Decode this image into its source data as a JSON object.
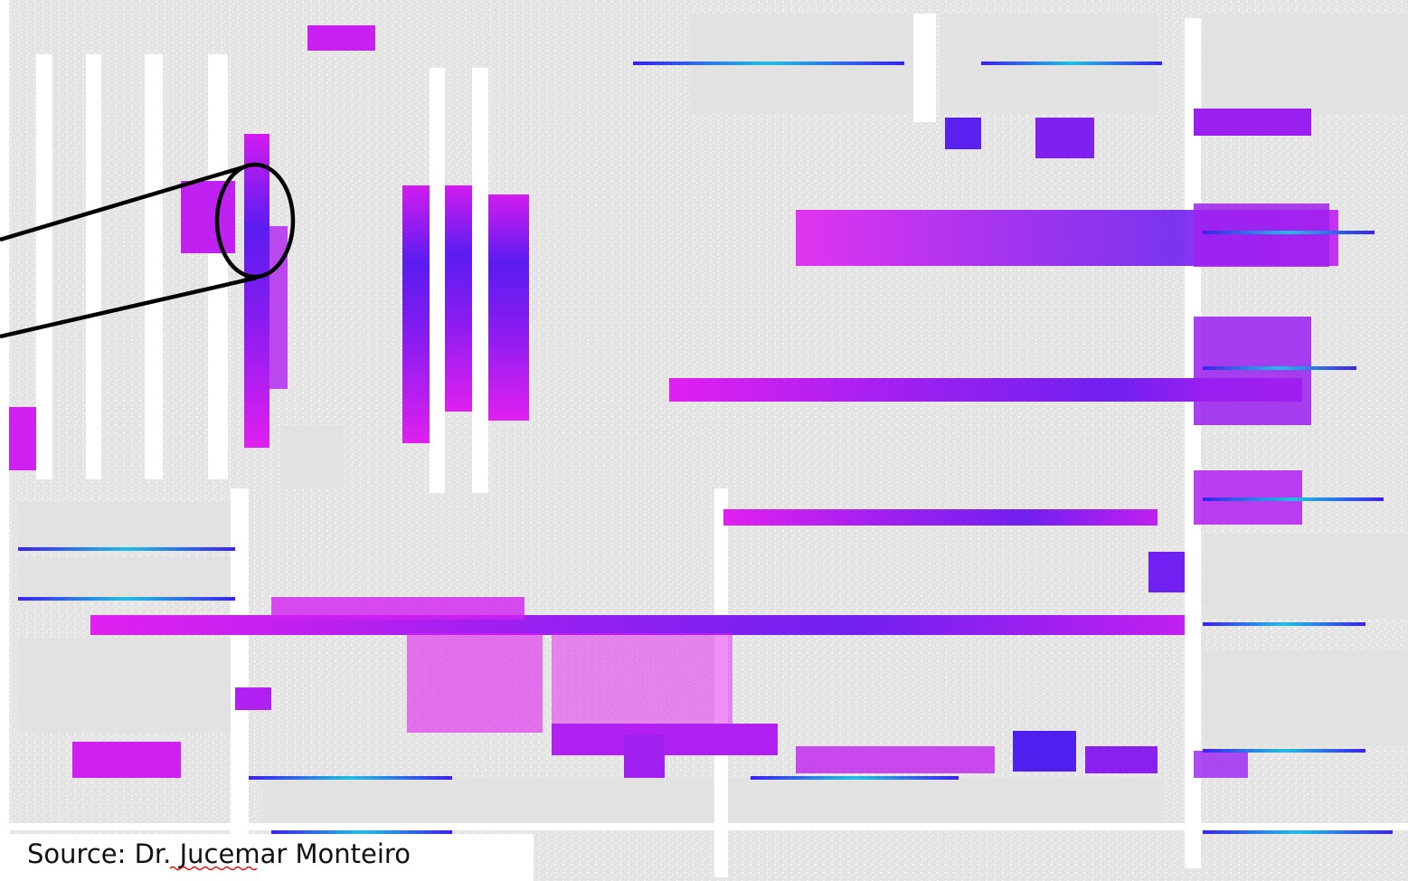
{
  "caption": "Source: Dr. Jucemar Monteiro"
}
